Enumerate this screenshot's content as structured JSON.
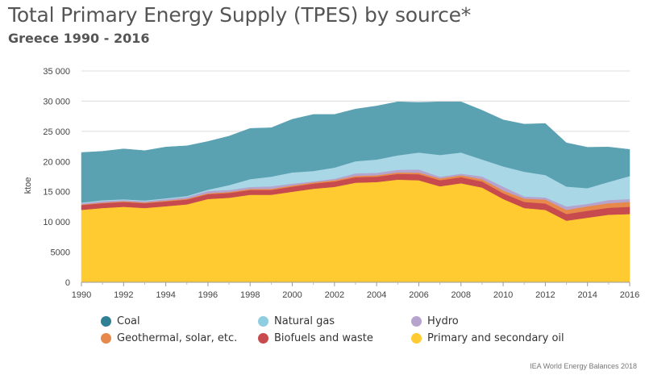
{
  "chart_data": {
    "type": "area",
    "stacked": true,
    "title": "Total Primary Energy Supply (TPES) by source*",
    "subtitle": "Greece 1990 - 2016",
    "ylabel": "ktoe",
    "xlabel": "",
    "ylim": [
      0,
      35000
    ],
    "yticks": [
      0,
      5000,
      10000,
      15000,
      20000,
      25000,
      30000,
      35000
    ],
    "ytick_labels": [
      "0",
      "5000",
      "10 000",
      "15 000",
      "20 000",
      "25 000",
      "30 000",
      "35 000"
    ],
    "xticks": [
      1990,
      1992,
      1994,
      1996,
      1998,
      2000,
      2002,
      2004,
      2006,
      2008,
      2010,
      2012,
      2014,
      2016
    ],
    "xtick_labels": [
      "1990",
      "1992",
      "1994",
      "1996",
      "1998",
      "2000",
      "2002",
      "2004",
      "2006",
      "2008",
      "2010",
      "2012",
      "2014",
      "2016"
    ],
    "grid": true,
    "legend_position": "bottom",
    "x": [
      1990,
      1991,
      1992,
      1993,
      1994,
      1995,
      1996,
      1997,
      1998,
      1999,
      2000,
      2001,
      2002,
      2003,
      2004,
      2005,
      2006,
      2007,
      2008,
      2009,
      2010,
      2011,
      2012,
      2013,
      2014,
      2015,
      2016
    ],
    "series": [
      {
        "name": "Primary and secondary oil",
        "color": "#ffcb31",
        "values": [
          12000,
          12300,
          12500,
          12300,
          12600,
          12900,
          13800,
          14000,
          14500,
          14500,
          15000,
          15500,
          15800,
          16500,
          16600,
          17000,
          16900,
          15900,
          16400,
          15700,
          13800,
          12300,
          12000,
          10200,
          10700,
          11200,
          11300
        ]
      },
      {
        "name": "Biofuels and waste",
        "color": "#c64a4e",
        "values": [
          800,
          800,
          800,
          800,
          800,
          800,
          800,
          800,
          800,
          800,
          850,
          850,
          900,
          900,
          900,
          950,
          1000,
          1000,
          1000,
          1000,
          950,
          1000,
          1050,
          1100,
          1150,
          1150,
          1200
        ]
      },
      {
        "name": "Geothermal, solar, etc.",
        "color": "#e6894a",
        "values": [
          100,
          100,
          120,
          120,
          130,
          140,
          150,
          160,
          170,
          180,
          190,
          200,
          210,
          220,
          230,
          250,
          270,
          300,
          330,
          380,
          450,
          550,
          650,
          700,
          750,
          750,
          800
        ]
      },
      {
        "name": "Hydro",
        "color": "#b6a4ce",
        "values": [
          160,
          250,
          190,
          200,
          230,
          300,
          390,
          340,
          320,
          420,
          310,
          180,
          240,
          430,
          400,
          430,
          520,
          290,
          270,
          460,
          640,
          360,
          370,
          560,
          390,
          520,
          490
        ]
      },
      {
        "name": "Natural gas",
        "color": "#a9d7e6",
        "values": [
          140,
          150,
          140,
          140,
          140,
          160,
          190,
          800,
          1300,
          1600,
          1850,
          1700,
          1850,
          2000,
          2200,
          2400,
          2800,
          3600,
          3500,
          2800,
          3350,
          4100,
          3700,
          3300,
          2600,
          3000,
          3800
        ]
      },
      {
        "name": "Coal",
        "color": "#5aa1b2",
        "values": [
          8300,
          8100,
          8350,
          8240,
          8500,
          8300,
          8000,
          8100,
          8400,
          8100,
          8800,
          9370,
          8800,
          8650,
          8870,
          8870,
          8310,
          8810,
          8400,
          8160,
          7710,
          7890,
          8530,
          7240,
          6770,
          5780,
          4410
        ]
      }
    ]
  },
  "legend": {
    "items": [
      {
        "label": "Coal",
        "color": "#2f7f95"
      },
      {
        "label": "Natural gas",
        "color": "#8fcde0"
      },
      {
        "label": "Hydro",
        "color": "#b6a4ce"
      },
      {
        "label": "Geothermal, solar, etc.",
        "color": "#e6894a"
      },
      {
        "label": "Biofuels and waste",
        "color": "#c64a4e"
      },
      {
        "label": "Primary and secondary oil",
        "color": "#ffcb31"
      }
    ]
  },
  "footer": {
    "source": "IEA World Energy Balances 2018"
  }
}
